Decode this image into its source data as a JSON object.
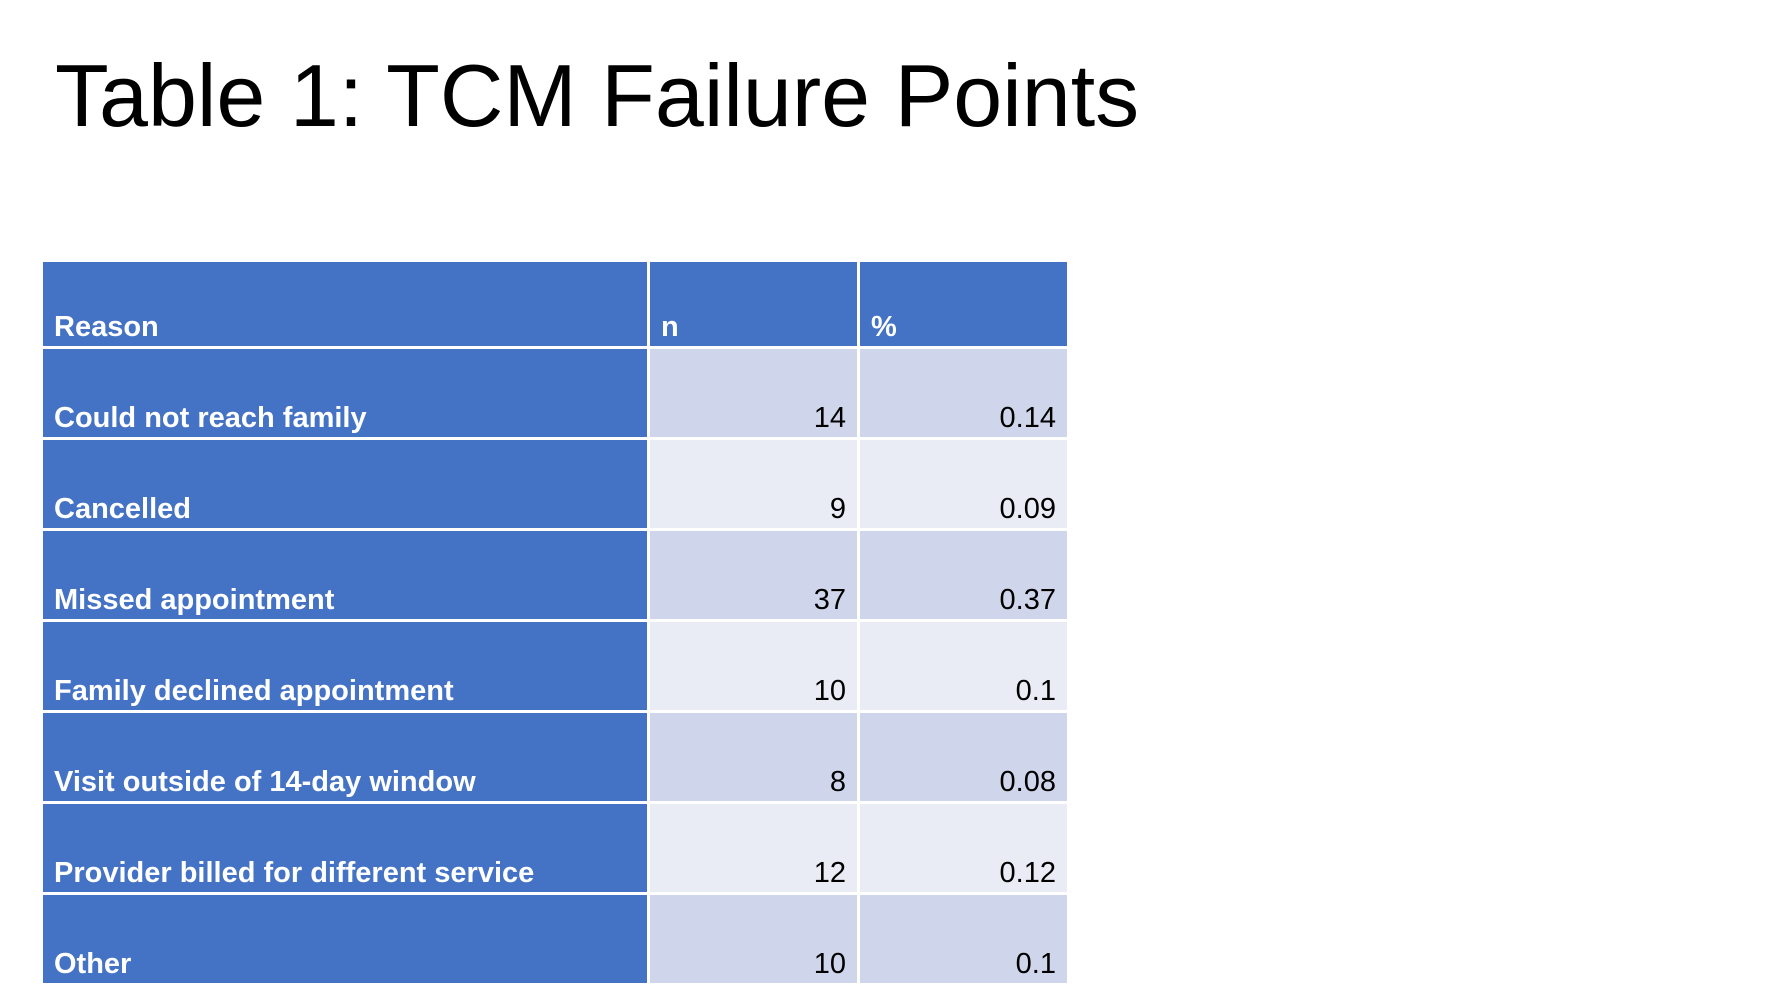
{
  "title": "Table 1: TCM Failure Points",
  "table": {
    "headers": [
      "Reason",
      "n",
      "%"
    ],
    "rows": [
      {
        "reason": "Could not reach family",
        "n": "14",
        "pct": "0.14"
      },
      {
        "reason": "Cancelled",
        "n": "9",
        "pct": "0.09"
      },
      {
        "reason": "Missed appointment",
        "n": "37",
        "pct": "0.37"
      },
      {
        "reason": "Family declined appointment",
        "n": "10",
        "pct": "0.1"
      },
      {
        "reason": "Visit outside of 14-day window",
        "n": "8",
        "pct": "0.08"
      },
      {
        "reason": "Provider billed for different service",
        "n": "12",
        "pct": "0.12"
      },
      {
        "reason": "Other",
        "n": "10",
        "pct": "0.1"
      }
    ]
  },
  "colors": {
    "header_fill": "#4472c4",
    "row_band_dark": "#cfd5ea",
    "row_band_light": "#e9ebf5"
  }
}
